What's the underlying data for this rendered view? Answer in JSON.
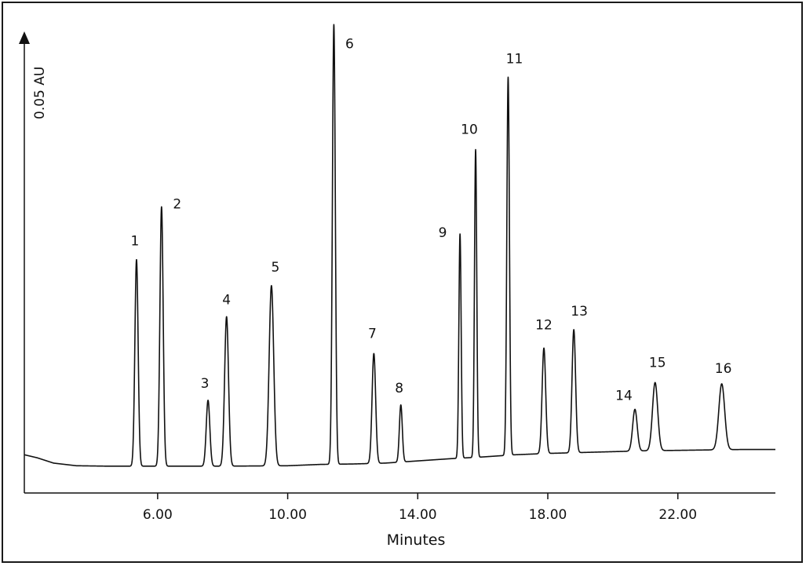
{
  "chart_data": {
    "type": "line",
    "title": "",
    "xlabel": "Minutes",
    "ylabel": "0.05 AU",
    "xlim": [
      1.9,
      25.0
    ],
    "ylim": [
      0,
      1.0
    ],
    "x_ticks": [
      6.0,
      10.0,
      14.0,
      18.0,
      22.0
    ],
    "x_tick_labels": [
      "6.00",
      "10.00",
      "14.00",
      "18.00",
      "22.00"
    ],
    "grid": false,
    "legend": "none",
    "line_color": "#111111",
    "baseline": [
      {
        "x": 1.9,
        "y": 0.062
      },
      {
        "x": 2.3,
        "y": 0.055
      },
      {
        "x": 2.8,
        "y": 0.043
      },
      {
        "x": 3.5,
        "y": 0.037
      },
      {
        "x": 4.5,
        "y": 0.036
      },
      {
        "x": 6.0,
        "y": 0.036
      },
      {
        "x": 8.0,
        "y": 0.036
      },
      {
        "x": 10.0,
        "y": 0.037
      },
      {
        "x": 11.0,
        "y": 0.04
      },
      {
        "x": 12.0,
        "y": 0.041
      },
      {
        "x": 13.0,
        "y": 0.043
      },
      {
        "x": 14.0,
        "y": 0.048
      },
      {
        "x": 15.0,
        "y": 0.053
      },
      {
        "x": 16.0,
        "y": 0.057
      },
      {
        "x": 17.0,
        "y": 0.062
      },
      {
        "x": 18.0,
        "y": 0.065
      },
      {
        "x": 19.0,
        "y": 0.067
      },
      {
        "x": 20.0,
        "y": 0.069
      },
      {
        "x": 21.0,
        "y": 0.071
      },
      {
        "x": 22.0,
        "y": 0.072
      },
      {
        "x": 23.0,
        "y": 0.073
      },
      {
        "x": 24.0,
        "y": 0.074
      },
      {
        "x": 25.0,
        "y": 0.074
      }
    ],
    "peaks": [
      {
        "label": "1",
        "rt": 5.35,
        "height": 0.47,
        "width": 0.05
      },
      {
        "label": "2",
        "rt": 6.12,
        "height": 0.59,
        "width": 0.05
      },
      {
        "label": "3",
        "rt": 7.55,
        "height": 0.15,
        "width": 0.055
      },
      {
        "label": "4",
        "rt": 8.12,
        "height": 0.34,
        "width": 0.06
      },
      {
        "label": "5",
        "rt": 9.5,
        "height": 0.41,
        "width": 0.07
      },
      {
        "label": "6",
        "rt": 11.42,
        "height": 1.0,
        "width": 0.045
      },
      {
        "label": "7",
        "rt": 12.65,
        "height": 0.25,
        "width": 0.055
      },
      {
        "label": "8",
        "rt": 13.48,
        "height": 0.13,
        "width": 0.045
      },
      {
        "label": "9",
        "rt": 15.3,
        "height": 0.51,
        "width": 0.035
      },
      {
        "label": "10",
        "rt": 15.78,
        "height": 0.7,
        "width": 0.035
      },
      {
        "label": "11",
        "rt": 16.78,
        "height": 0.86,
        "width": 0.04
      },
      {
        "label": "12",
        "rt": 17.88,
        "height": 0.24,
        "width": 0.055
      },
      {
        "label": "13",
        "rt": 18.8,
        "height": 0.28,
        "width": 0.055
      },
      {
        "label": "14",
        "rt": 20.68,
        "height": 0.095,
        "width": 0.07
      },
      {
        "label": "15",
        "rt": 21.3,
        "height": 0.155,
        "width": 0.08
      },
      {
        "label": "16",
        "rt": 23.35,
        "height": 0.15,
        "width": 0.09
      }
    ]
  }
}
